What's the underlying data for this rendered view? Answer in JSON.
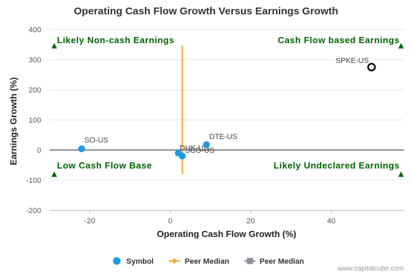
{
  "chart_data": {
    "type": "scatter",
    "title": "Operating Cash Flow Growth Versus Earnings Growth",
    "xlabel": "Operating Cash Flow Growth (%)",
    "ylabel": "Earnings Growth (%)",
    "xlim": [
      -30,
      58
    ],
    "ylim": [
      -200,
      400
    ],
    "xticks": [
      -20,
      0,
      20,
      40
    ],
    "yticks": [
      400,
      300,
      200,
      100,
      0,
      -100,
      -200
    ],
    "points": [
      {
        "label": "SO-US",
        "x": -22,
        "y": 4,
        "style": "symbol"
      },
      {
        "label": "DUK-US",
        "x": 2,
        "y": -10,
        "style": "symbol"
      },
      {
        "label": "SCG-US",
        "x": 3,
        "y": -20,
        "style": "symbol"
      },
      {
        "label": "DTE-US",
        "x": 9,
        "y": 18,
        "style": "symbol"
      },
      {
        "label": "SPKE-US",
        "x": 50,
        "y": 275,
        "style": "focus"
      }
    ],
    "peer_median_x": 3,
    "peer_median_y": 0,
    "quadrants": {
      "top_left": "Likely Non-cash Earnings",
      "top_right": "Cash Flow based Earnings",
      "bottom_left": "Low Cash Flow Base",
      "bottom_right": "Likely Undeclared Earnings"
    },
    "legend": [
      "Symbol",
      "Peer Median",
      "Peer Median"
    ],
    "colors": {
      "symbol": "#1e9be6",
      "peer_median_x": "#f5a623",
      "peer_median_y": "#8a8d99",
      "quadrant_text": "#006400",
      "focus": "#111111"
    }
  },
  "credit": "www.capitalcube.com"
}
